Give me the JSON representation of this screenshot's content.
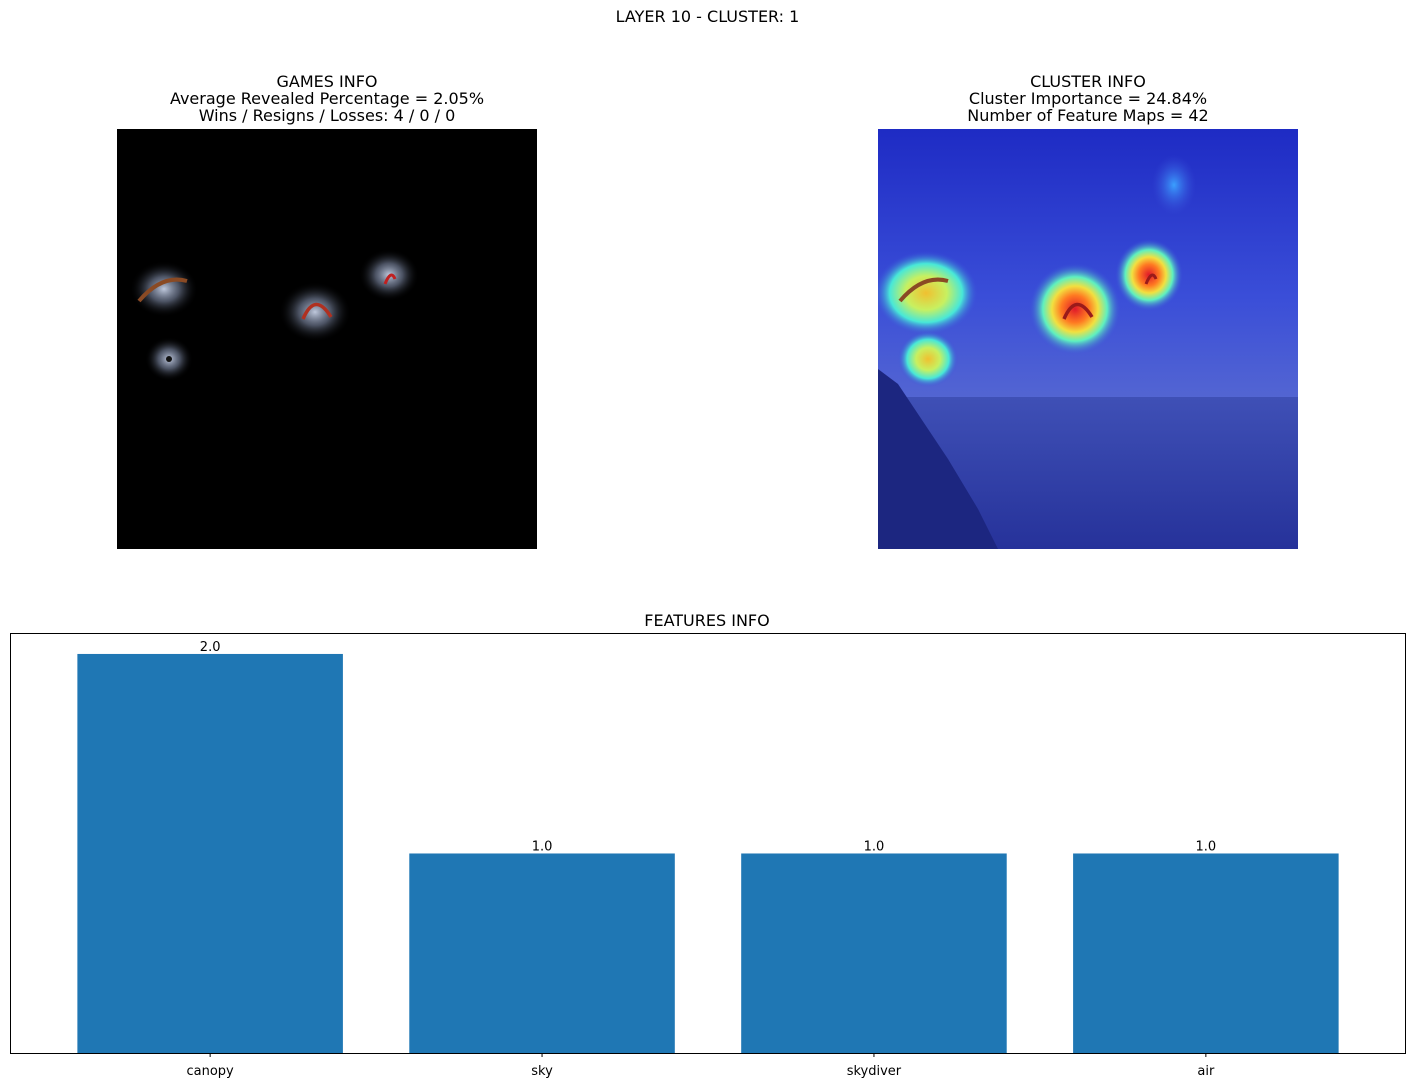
{
  "figure": {
    "suptitle": "LAYER 10 - CLUSTER: 1"
  },
  "games_panel": {
    "title_lines": [
      "GAMES INFO",
      "Average Revealed Percentage = 2.05%",
      "Wins / Resigns / Losses: 4 / 0 / 0"
    ]
  },
  "cluster_panel": {
    "title_lines": [
      "CLUSTER INFO",
      "Cluster Importance = 24.84%",
      "Number of Feature Maps = 42"
    ]
  },
  "chart_data": {
    "type": "bar",
    "title": "FEATURES INFO",
    "categories": [
      "canopy",
      "sky",
      "skydiver",
      "air"
    ],
    "values": [
      2.0,
      1.0,
      1.0,
      1.0
    ],
    "value_labels": [
      "2.0",
      "1.0",
      "1.0",
      "1.0"
    ],
    "xlabel": "",
    "ylabel": "",
    "ylim": [
      0,
      2.1
    ],
    "grid": false,
    "yticks_visible": false,
    "bar_color": "#1f77b4"
  }
}
